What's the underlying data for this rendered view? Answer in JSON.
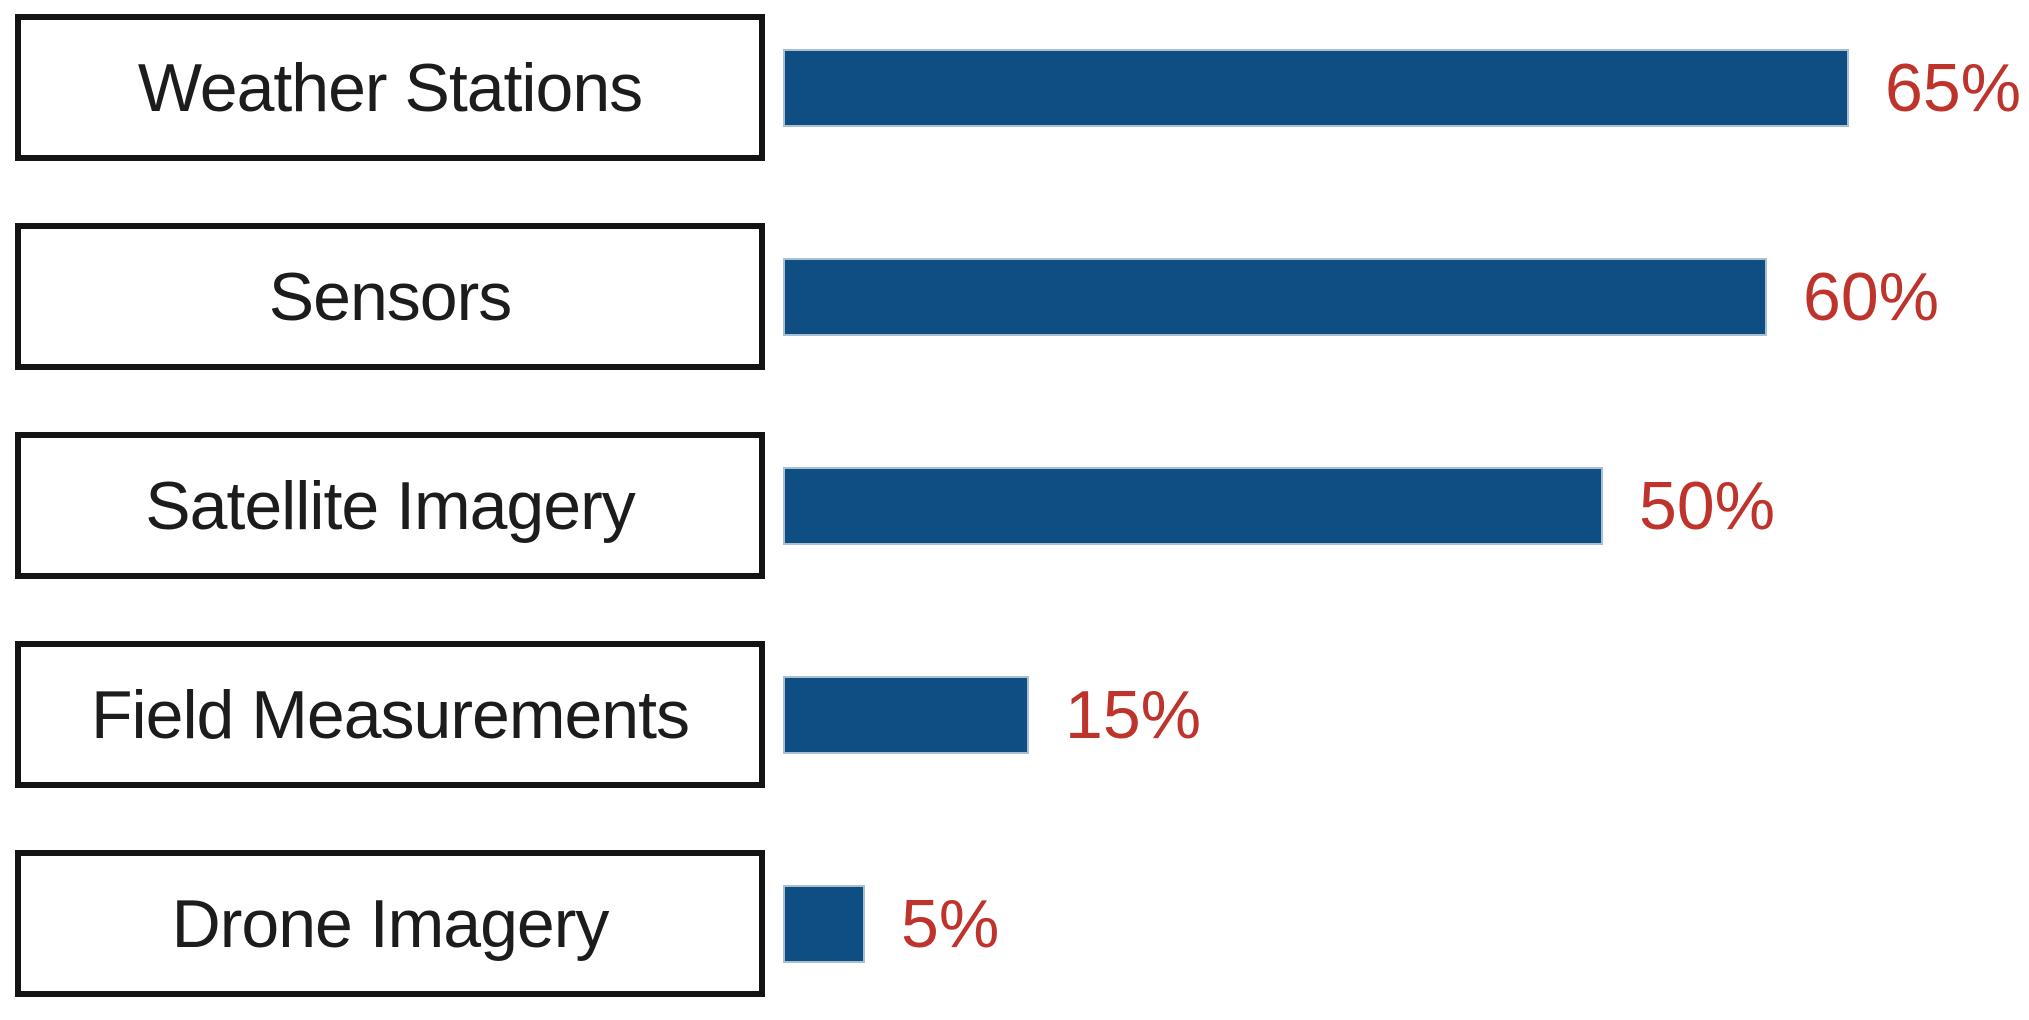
{
  "chart_data": {
    "type": "bar",
    "orientation": "horizontal",
    "title": "",
    "xlabel": "",
    "ylabel": "",
    "categories": [
      "Weather Stations",
      "Sensors",
      "Satellite Imagery",
      "Field Measurements",
      "Drone Imagery"
    ],
    "values": [
      65,
      60,
      50,
      15,
      5
    ],
    "value_labels": [
      "65%",
      "60%",
      "50%",
      "15%",
      "5%"
    ],
    "unit": "%",
    "xlim": [
      0,
      65
    ],
    "grid": "off",
    "legend": "none",
    "bar_color": "#0F4E83",
    "bar_edge_color": "#A9BFD2",
    "value_label_color": "#BE332B",
    "category_box_border_color": "#141414",
    "category_label_color": "#1C1C1C",
    "background_color": "#FFFFFF"
  }
}
